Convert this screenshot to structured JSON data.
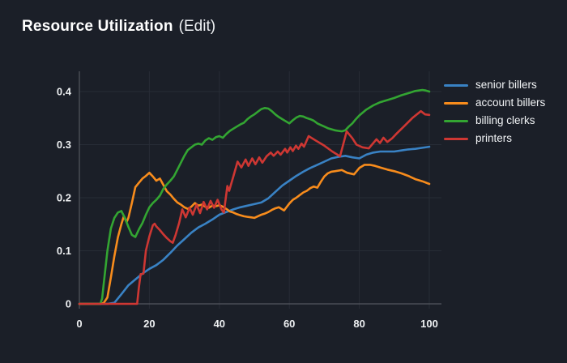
{
  "header": {
    "title": "Resource Utilization",
    "edit_label": "(Edit)"
  },
  "chart_data": {
    "type": "line",
    "title": "Resource Utilization",
    "xlabel": "",
    "ylabel": "",
    "xlim": [
      0,
      100
    ],
    "ylim": [
      0,
      0.4
    ],
    "xticks": [
      0,
      20,
      40,
      60,
      80,
      100
    ],
    "yticks": [
      0,
      0.1,
      0.2,
      0.3,
      0.4
    ],
    "grid": true,
    "legend_position": "right",
    "colors": {
      "background": "#1b1f28",
      "grid": "#272c36",
      "axis": "#53565e",
      "tick_text": "#eef0f2",
      "title_text": "#ffffff"
    },
    "series": [
      {
        "name": "senior billers",
        "color": "#3982c4",
        "x": [
          0,
          4,
          8,
          10,
          12,
          14,
          16,
          18,
          20,
          22,
          24,
          26,
          28,
          30,
          32,
          34,
          36,
          38,
          40,
          42,
          44,
          46,
          48,
          50,
          52,
          54,
          56,
          58,
          60,
          62,
          64,
          66,
          68,
          70,
          72,
          74,
          76,
          78,
          80,
          82,
          84,
          86,
          88,
          90,
          92,
          94,
          96,
          98,
          100
        ],
        "y": [
          0,
          0,
          0,
          0.002,
          0.018,
          0.035,
          0.046,
          0.057,
          0.066,
          0.073,
          0.083,
          0.096,
          0.11,
          0.122,
          0.134,
          0.144,
          0.151,
          0.159,
          0.168,
          0.173,
          0.178,
          0.182,
          0.185,
          0.188,
          0.191,
          0.199,
          0.211,
          0.223,
          0.232,
          0.241,
          0.249,
          0.256,
          0.262,
          0.268,
          0.274,
          0.277,
          0.279,
          0.276,
          0.274,
          0.281,
          0.285,
          0.287,
          0.287,
          0.287,
          0.289,
          0.291,
          0.292,
          0.294,
          0.296
        ]
      },
      {
        "name": "account billers",
        "color": "#f88c1c",
        "x": [
          0,
          6,
          7,
          8,
          9,
          10,
          11,
          12,
          12.7,
          13.5,
          14,
          15,
          16,
          17,
          18,
          19,
          20,
          21,
          22,
          23,
          24,
          25,
          26,
          27,
          28,
          29,
          30,
          31,
          32,
          33,
          34,
          35,
          36,
          37,
          38,
          39,
          40,
          41,
          42,
          43,
          44,
          45,
          46,
          47,
          48,
          49,
          50,
          51,
          52,
          53,
          54,
          55,
          56,
          57,
          58.5,
          60,
          61,
          62,
          63,
          64,
          65,
          66,
          67,
          68,
          69,
          70,
          71,
          72,
          73,
          75,
          76.5,
          78.5,
          80,
          81.5,
          83,
          84.5,
          86,
          88,
          90,
          92,
          94,
          96,
          98,
          100
        ],
        "y": [
          0,
          0,
          0.002,
          0.012,
          0.05,
          0.09,
          0.125,
          0.15,
          0.165,
          0.154,
          0.162,
          0.19,
          0.22,
          0.228,
          0.236,
          0.241,
          0.247,
          0.24,
          0.232,
          0.236,
          0.224,
          0.212,
          0.206,
          0.198,
          0.191,
          0.187,
          0.182,
          0.179,
          0.183,
          0.19,
          0.185,
          0.187,
          0.183,
          0.181,
          0.185,
          0.184,
          0.186,
          0.183,
          0.179,
          0.174,
          0.172,
          0.169,
          0.167,
          0.165,
          0.164,
          0.163,
          0.162,
          0.165,
          0.168,
          0.17,
          0.173,
          0.177,
          0.18,
          0.182,
          0.176,
          0.189,
          0.196,
          0.2,
          0.205,
          0.21,
          0.213,
          0.218,
          0.221,
          0.219,
          0.23,
          0.24,
          0.246,
          0.249,
          0.25,
          0.252,
          0.247,
          0.244,
          0.256,
          0.262,
          0.262,
          0.26,
          0.257,
          0.253,
          0.25,
          0.246,
          0.241,
          0.235,
          0.231,
          0.226
        ]
      },
      {
        "name": "billing clerks",
        "color": "#33a532",
        "x": [
          0,
          6,
          6.5,
          7,
          8,
          9,
          10,
          11,
          12,
          13,
          14,
          15,
          16,
          17,
          18,
          19,
          20,
          21,
          22,
          23,
          24,
          25,
          26,
          27,
          28,
          29,
          30,
          31,
          32,
          33,
          34,
          35,
          36,
          37,
          38,
          39,
          40,
          41,
          42,
          43,
          44,
          45,
          46,
          47,
          48,
          49,
          50,
          51,
          52,
          53,
          54,
          55,
          56,
          57,
          58,
          59,
          60,
          61,
          62,
          63,
          64,
          65,
          66,
          67,
          68,
          69,
          70,
          71,
          72,
          73,
          74,
          75,
          76,
          77,
          78,
          79,
          80,
          82,
          84,
          86,
          88,
          90,
          92,
          94,
          96,
          97,
          98,
          99,
          100
        ],
        "y": [
          0,
          0,
          0.01,
          0.04,
          0.1,
          0.142,
          0.162,
          0.172,
          0.175,
          0.162,
          0.145,
          0.13,
          0.126,
          0.14,
          0.152,
          0.168,
          0.182,
          0.19,
          0.196,
          0.204,
          0.217,
          0.225,
          0.232,
          0.24,
          0.253,
          0.266,
          0.279,
          0.29,
          0.295,
          0.3,
          0.302,
          0.3,
          0.308,
          0.312,
          0.309,
          0.314,
          0.316,
          0.313,
          0.32,
          0.326,
          0.33,
          0.334,
          0.338,
          0.341,
          0.348,
          0.353,
          0.357,
          0.362,
          0.367,
          0.369,
          0.368,
          0.363,
          0.357,
          0.352,
          0.348,
          0.344,
          0.34,
          0.346,
          0.351,
          0.354,
          0.353,
          0.35,
          0.348,
          0.345,
          0.34,
          0.337,
          0.334,
          0.331,
          0.329,
          0.327,
          0.326,
          0.325,
          0.327,
          0.334,
          0.34,
          0.348,
          0.355,
          0.366,
          0.374,
          0.38,
          0.384,
          0.388,
          0.393,
          0.397,
          0.401,
          0.402,
          0.403,
          0.402,
          0.4
        ]
      },
      {
        "name": "printers",
        "color": "#ce3733",
        "x": [
          0,
          16.5,
          17,
          17.5,
          18.3,
          19,
          20,
          21,
          21.5,
          22,
          23,
          24,
          25,
          26,
          26.7,
          27.5,
          28.5,
          29.4,
          30.4,
          31.5,
          32.4,
          33.5,
          34.5,
          35.5,
          36.5,
          37.5,
          38.5,
          39.5,
          40.7,
          41.3,
          42.3,
          42.8,
          44,
          45.2,
          46.3,
          47.5,
          48.3,
          49.4,
          50.3,
          51.4,
          52.3,
          53.5,
          54.7,
          55.5,
          56.7,
          57.5,
          58.8,
          59.4,
          60.3,
          61,
          61.9,
          62.6,
          63.5,
          64.2,
          65.5,
          67.5,
          70,
          72.3,
          74.5,
          76.4,
          78,
          79.2,
          80.9,
          82.7,
          84.9,
          85.9,
          86.9,
          88,
          89.4,
          90.7,
          93,
          95.3,
          97.6,
          98.8,
          100
        ],
        "y": [
          0,
          0,
          0.03,
          0.056,
          0.057,
          0.1,
          0.127,
          0.148,
          0.151,
          0.146,
          0.139,
          0.131,
          0.124,
          0.118,
          0.115,
          0.13,
          0.152,
          0.178,
          0.163,
          0.181,
          0.168,
          0.187,
          0.171,
          0.192,
          0.178,
          0.194,
          0.181,
          0.196,
          0.177,
          0.172,
          0.222,
          0.213,
          0.24,
          0.268,
          0.257,
          0.272,
          0.26,
          0.274,
          0.263,
          0.276,
          0.266,
          0.278,
          0.285,
          0.279,
          0.287,
          0.281,
          0.292,
          0.285,
          0.295,
          0.288,
          0.298,
          0.292,
          0.302,
          0.296,
          0.316,
          0.308,
          0.298,
          0.287,
          0.278,
          0.325,
          0.312,
          0.3,
          0.295,
          0.293,
          0.31,
          0.303,
          0.313,
          0.305,
          0.312,
          0.321,
          0.336,
          0.351,
          0.363,
          0.357,
          0.356
        ]
      }
    ]
  }
}
